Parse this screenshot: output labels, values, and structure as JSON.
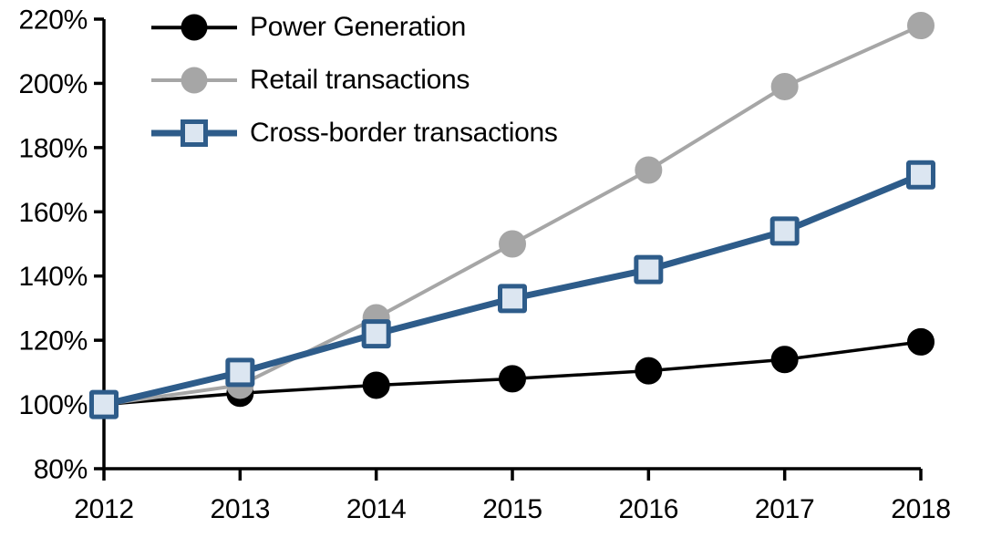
{
  "chart_data": {
    "type": "line",
    "title": "",
    "xlabel": "",
    "ylabel": "",
    "x": [
      2012,
      2013,
      2014,
      2015,
      2016,
      2017,
      2018
    ],
    "xtick_labels": [
      "2012",
      "2013",
      "2014",
      "2015",
      "2016",
      "2017",
      "2018"
    ],
    "ylim": [
      80,
      220
    ],
    "ytick_step": 20,
    "ytick_labels": [
      "80%",
      "100%",
      "120%",
      "140%",
      "160%",
      "180%",
      "200%",
      "220%"
    ],
    "ytick_suffix": "%",
    "grid": false,
    "background": "#ffffff",
    "axis_color": "#000000",
    "legend_position": "top-left-inside",
    "series": [
      {
        "name": "Power Generation",
        "marker": "circle",
        "line_color": "#000000",
        "marker_color": "#000000",
        "marker_border": "#000000",
        "line_width": 3.5,
        "values": [
          100,
          103.5,
          106,
          108,
          110.5,
          114,
          119.5
        ]
      },
      {
        "name": "Retail transactions",
        "marker": "circle",
        "line_color": "#a6a6a6",
        "marker_color": "#a6a6a6",
        "marker_border": "#a6a6a6",
        "line_width": 4,
        "values": [
          100,
          106,
          127,
          150,
          173,
          199,
          218
        ]
      },
      {
        "name": "Cross-border transactions",
        "marker": "square",
        "line_color": "#2e5c8a",
        "marker_color": "#dce6f1",
        "marker_border": "#2e5c8a",
        "line_width": 7,
        "values": [
          100,
          110,
          122,
          133,
          142,
          154,
          171.5
        ]
      }
    ]
  }
}
